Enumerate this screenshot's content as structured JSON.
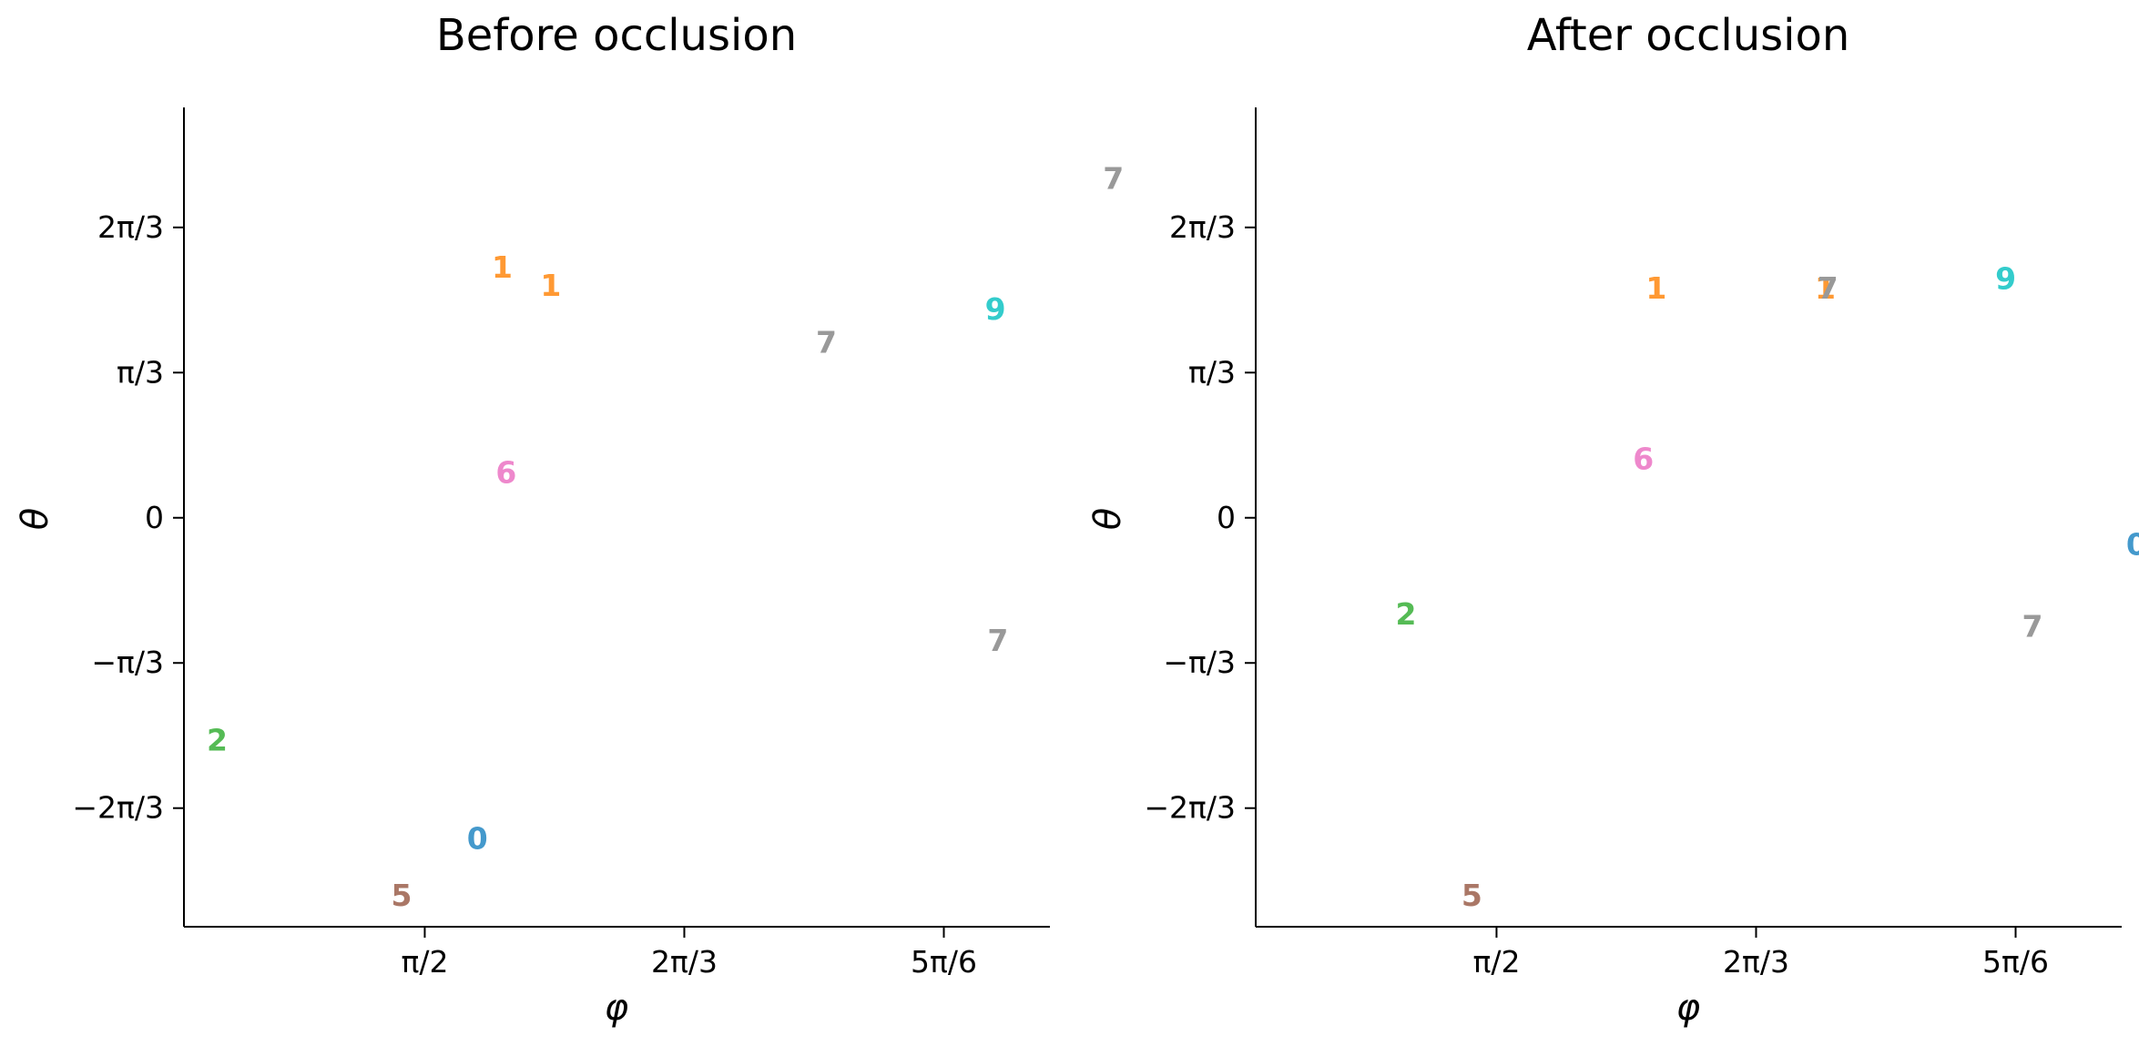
{
  "chart_data": [
    {
      "type": "scatter",
      "title": "Before occlusion",
      "xlabel": "φ",
      "ylabel": "θ",
      "xlim": [
        1.085,
        2.832
      ],
      "ylim": [
        -2.95,
        2.96
      ],
      "xticks": [
        {
          "value": 1.5708,
          "label": "π/2"
        },
        {
          "value": 2.0944,
          "label": "2π/3"
        },
        {
          "value": 2.618,
          "label": "5π/6"
        }
      ],
      "yticks": [
        {
          "value": 2.0944,
          "label": "2π/3"
        },
        {
          "value": 1.0472,
          "label": "π/3"
        },
        {
          "value": 0,
          "label": "0"
        },
        {
          "value": -1.0472,
          "label": "−π/3"
        },
        {
          "value": -2.0944,
          "label": "−2π/3"
        }
      ],
      "points": [
        {
          "label": "7",
          "x": 2.96,
          "y": 2.45,
          "color": "#999999"
        },
        {
          "label": "1",
          "x": 1.727,
          "y": 1.81,
          "color": "#ff9933"
        },
        {
          "label": "1",
          "x": 1.825,
          "y": 1.68,
          "color": "#ff9933"
        },
        {
          "label": "9",
          "x": 2.722,
          "y": 1.51,
          "color": "#33cccc"
        },
        {
          "label": "7",
          "x": 2.381,
          "y": 1.27,
          "color": "#999999"
        },
        {
          "label": "6",
          "x": 1.735,
          "y": 0.33,
          "color": "#ee88cc"
        },
        {
          "label": "7",
          "x": 2.727,
          "y": -0.88,
          "color": "#999999"
        },
        {
          "label": "2",
          "x": 1.152,
          "y": -1.6,
          "color": "#55bb55"
        },
        {
          "label": "0",
          "x": 1.677,
          "y": -2.31,
          "color": "#4499cc"
        },
        {
          "label": "5",
          "x": 1.524,
          "y": -2.72,
          "color": "#aa7766"
        }
      ]
    },
    {
      "type": "scatter",
      "title": "After occlusion",
      "xlabel": "φ",
      "ylabel": "θ",
      "xlim": [
        1.085,
        2.832
      ],
      "ylim": [
        -2.95,
        2.96
      ],
      "xticks": [
        {
          "value": 1.5708,
          "label": "π/2"
        },
        {
          "value": 2.0944,
          "label": "2π/3"
        },
        {
          "value": 2.618,
          "label": "5π/6"
        }
      ],
      "yticks": [
        {
          "value": 2.0944,
          "label": "2π/3"
        },
        {
          "value": 1.0472,
          "label": "π/3"
        },
        {
          "value": 0,
          "label": "0"
        },
        {
          "value": -1.0472,
          "label": "−π/3"
        },
        {
          "value": -2.0944,
          "label": "−2π/3"
        }
      ],
      "points": [
        {
          "label": "7",
          "x": 2.96,
          "y": 2.31,
          "color": "#999999"
        },
        {
          "label": "1",
          "x": 1.893,
          "y": 1.66,
          "color": "#ff9933"
        },
        {
          "label": "1",
          "x": 2.234,
          "y": 1.66,
          "color": "#ff9933"
        },
        {
          "label": "7",
          "x": 2.239,
          "y": 1.66,
          "color": "#999999"
        },
        {
          "label": "9",
          "x": 2.598,
          "y": 1.73,
          "color": "#33cccc"
        },
        {
          "label": "6",
          "x": 1.867,
          "y": 0.43,
          "color": "#ee88cc"
        },
        {
          "label": "0",
          "x": 2.862,
          "y": -0.19,
          "color": "#4499cc"
        },
        {
          "label": "2",
          "x": 1.388,
          "y": -0.69,
          "color": "#55bb55"
        },
        {
          "label": "7",
          "x": 2.652,
          "y": -0.78,
          "color": "#999999"
        },
        {
          "label": "5",
          "x": 1.521,
          "y": -2.72,
          "color": "#aa7766"
        }
      ]
    }
  ]
}
